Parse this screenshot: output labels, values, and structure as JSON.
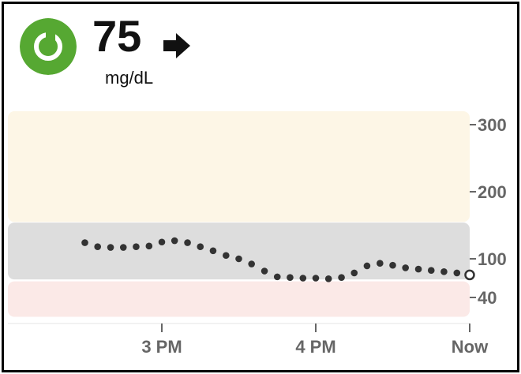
{
  "header": {
    "glucose_value": "75",
    "unit": "mg/dL",
    "status_color": "#56a832",
    "status_icon": "sensor-status-icon",
    "trend_icon": "trend-arrow-right-icon"
  },
  "chart_data": {
    "type": "scatter",
    "x_unit": "time",
    "x_tick_labels": [
      "3 PM",
      "4 PM",
      "Now"
    ],
    "y_ticks": [
      300,
      200,
      100,
      40
    ],
    "y_tick_labels": [
      "300",
      "200",
      "100",
      "40"
    ],
    "ranges": [
      {
        "from": 155,
        "to": 320,
        "color": "#fdf6e6"
      },
      {
        "from": 68,
        "to": 154,
        "color": "#dddddd"
      },
      {
        "from": 10,
        "to": 65,
        "color": "#fbe9e7"
      }
    ],
    "series": [
      {
        "color": "#333333",
        "x": [
          -2.5,
          -2.417,
          -2.333,
          -2.25,
          -2.167,
          -2.083,
          -2.0,
          -1.917,
          -1.833,
          -1.75,
          -1.667,
          -1.583,
          -1.5,
          -1.417,
          -1.333,
          -1.25,
          -1.167,
          -1.083,
          -1.0,
          -0.917,
          -0.833,
          -0.75,
          -0.667,
          -0.583,
          -0.5,
          -0.417,
          -0.333,
          -0.25,
          -0.167,
          -0.083,
          0.0
        ],
        "y": [
          124,
          118,
          117,
          117,
          118,
          119,
          125,
          127,
          124,
          118,
          112,
          105,
          100,
          92,
          81,
          72,
          71,
          70,
          70,
          69,
          71,
          78,
          89,
          93,
          90,
          86,
          84,
          82,
          80,
          78,
          75
        ]
      }
    ]
  }
}
